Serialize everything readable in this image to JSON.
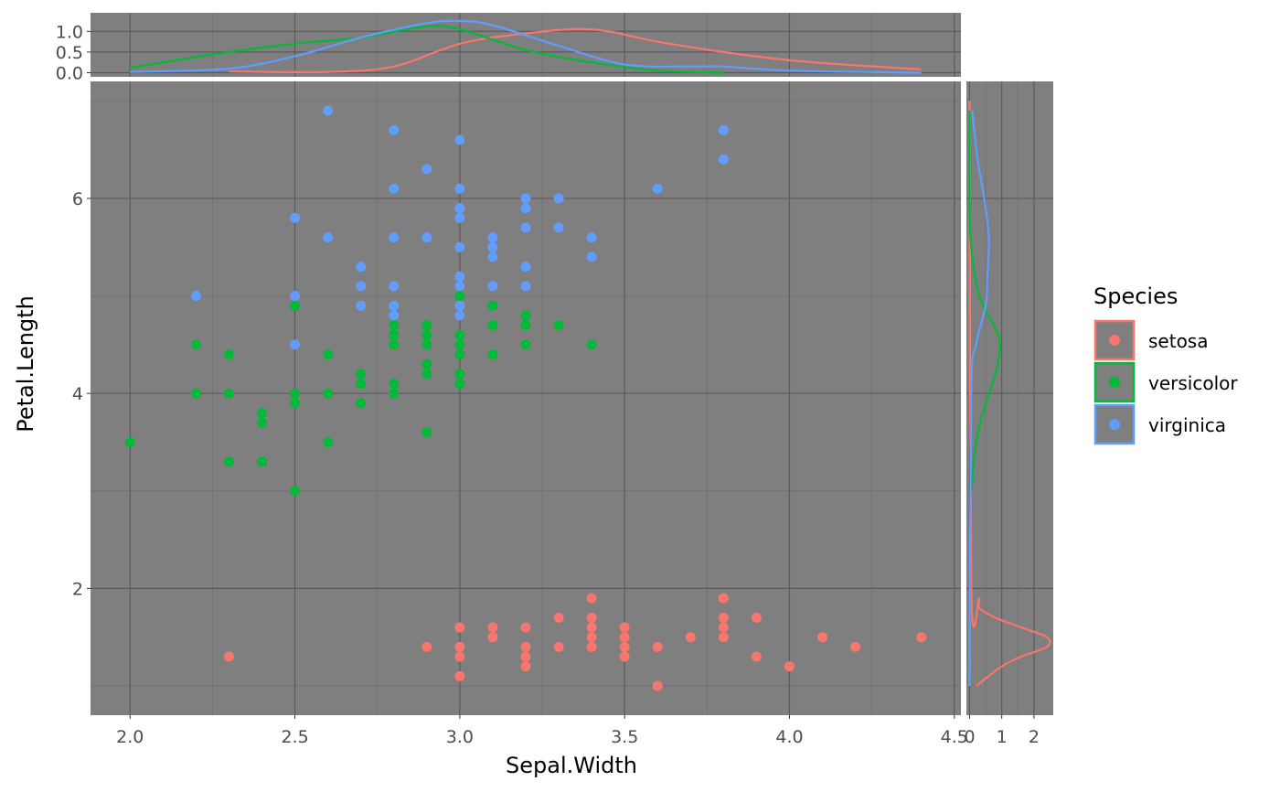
{
  "chart_data": {
    "type": "scatter",
    "xlabel": "Sepal.Width",
    "ylabel": "Petal.Length",
    "xlim": [
      1.88,
      4.52
    ],
    "ylim": [
      0.7,
      7.2
    ],
    "x_ticks": [
      "2.0",
      "2.5",
      "3.0",
      "3.5",
      "4.0",
      "4.5"
    ],
    "y_ticks": [
      "2",
      "4",
      "6"
    ],
    "top_density_ticks": [
      "0.0",
      "0.5",
      "1.0"
    ],
    "right_density_ticks": [
      "0",
      "1",
      "2"
    ],
    "grid": true,
    "legend": {
      "title": "Species",
      "position": "right"
    },
    "series": [
      {
        "name": "setosa",
        "color": "#F8766D",
        "points": [
          [
            2.3,
            1.3
          ],
          [
            2.9,
            1.4
          ],
          [
            3.0,
            1.6
          ],
          [
            3.0,
            1.4
          ],
          [
            3.0,
            1.3
          ],
          [
            3.0,
            1.1
          ],
          [
            3.1,
            1.6
          ],
          [
            3.1,
            1.5
          ],
          [
            3.2,
            1.6
          ],
          [
            3.2,
            1.4
          ],
          [
            3.2,
            1.3
          ],
          [
            3.2,
            1.2
          ],
          [
            3.3,
            1.7
          ],
          [
            3.3,
            1.4
          ],
          [
            3.4,
            1.9
          ],
          [
            3.4,
            1.7
          ],
          [
            3.4,
            1.6
          ],
          [
            3.4,
            1.5
          ],
          [
            3.4,
            1.4
          ],
          [
            3.5,
            1.6
          ],
          [
            3.5,
            1.5
          ],
          [
            3.5,
            1.4
          ],
          [
            3.5,
            1.3
          ],
          [
            3.6,
            1.4
          ],
          [
            3.6,
            1.0
          ],
          [
            3.7,
            1.5
          ],
          [
            3.8,
            1.9
          ],
          [
            3.8,
            1.7
          ],
          [
            3.8,
            1.6
          ],
          [
            3.8,
            1.5
          ],
          [
            3.9,
            1.7
          ],
          [
            3.9,
            1.3
          ],
          [
            4.0,
            1.2
          ],
          [
            4.1,
            1.5
          ],
          [
            4.2,
            1.4
          ],
          [
            4.4,
            1.5
          ]
        ],
        "density_x": [
          [
            2.3,
            0.03
          ],
          [
            2.6,
            0.02
          ],
          [
            2.8,
            0.15
          ],
          [
            3.0,
            0.7
          ],
          [
            3.2,
            0.95
          ],
          [
            3.4,
            1.05
          ],
          [
            3.6,
            0.75
          ],
          [
            3.8,
            0.5
          ],
          [
            4.0,
            0.3
          ],
          [
            4.2,
            0.18
          ],
          [
            4.4,
            0.08
          ]
        ],
        "density_y": [
          [
            1.0,
            0.2
          ],
          [
            1.2,
            1.0
          ],
          [
            1.3,
            1.6
          ],
          [
            1.4,
            2.4
          ],
          [
            1.5,
            2.4
          ],
          [
            1.6,
            1.6
          ],
          [
            1.7,
            0.8
          ],
          [
            1.8,
            0.3
          ],
          [
            1.9,
            0.3
          ],
          [
            2.0,
            0.05
          ],
          [
            7.0,
            0.0
          ]
        ]
      },
      {
        "name": "versicolor",
        "color": "#00BA38",
        "points": [
          [
            2.0,
            3.5
          ],
          [
            2.2,
            4.5
          ],
          [
            2.2,
            4.0
          ],
          [
            2.3,
            4.4
          ],
          [
            2.3,
            4.0
          ],
          [
            2.3,
            3.3
          ],
          [
            2.4,
            3.8
          ],
          [
            2.4,
            3.7
          ],
          [
            2.4,
            3.3
          ],
          [
            2.5,
            4.9
          ],
          [
            2.5,
            4.0
          ],
          [
            2.5,
            3.9
          ],
          [
            2.5,
            3.0
          ],
          [
            2.6,
            4.4
          ],
          [
            2.6,
            4.0
          ],
          [
            2.6,
            3.5
          ],
          [
            2.7,
            4.2
          ],
          [
            2.7,
            4.1
          ],
          [
            2.7,
            3.9
          ],
          [
            2.8,
            4.7
          ],
          [
            2.8,
            4.6
          ],
          [
            2.8,
            4.5
          ],
          [
            2.8,
            4.1
          ],
          [
            2.8,
            4.0
          ],
          [
            2.9,
            4.7
          ],
          [
            2.9,
            4.6
          ],
          [
            2.9,
            4.5
          ],
          [
            2.9,
            4.3
          ],
          [
            2.9,
            4.2
          ],
          [
            2.9,
            3.6
          ],
          [
            3.0,
            5.0
          ],
          [
            3.0,
            4.6
          ],
          [
            3.0,
            4.5
          ],
          [
            3.0,
            4.4
          ],
          [
            3.0,
            4.2
          ],
          [
            3.0,
            4.1
          ],
          [
            3.1,
            4.9
          ],
          [
            3.1,
            4.7
          ],
          [
            3.1,
            4.4
          ],
          [
            3.2,
            4.8
          ],
          [
            3.2,
            4.7
          ],
          [
            3.2,
            4.5
          ],
          [
            3.3,
            4.7
          ],
          [
            3.4,
            4.5
          ]
        ],
        "density_x": [
          [
            2.0,
            0.12
          ],
          [
            2.3,
            0.5
          ],
          [
            2.5,
            0.7
          ],
          [
            2.7,
            0.85
          ],
          [
            2.9,
            1.12
          ],
          [
            3.0,
            1.05
          ],
          [
            3.2,
            0.55
          ],
          [
            3.4,
            0.25
          ],
          [
            3.6,
            0.05
          ],
          [
            3.8,
            0.0
          ]
        ],
        "density_y": [
          [
            3.0,
            0.05
          ],
          [
            3.5,
            0.2
          ],
          [
            3.9,
            0.5
          ],
          [
            4.2,
            0.8
          ],
          [
            4.5,
            0.95
          ],
          [
            4.7,
            0.75
          ],
          [
            5.0,
            0.3
          ],
          [
            5.5,
            0.05
          ],
          [
            6.0,
            0.0
          ],
          [
            6.9,
            0.0
          ]
        ]
      },
      {
        "name": "virginica",
        "color": "#619CFF",
        "points": [
          [
            2.2,
            5.0
          ],
          [
            2.5,
            5.8
          ],
          [
            2.5,
            5.0
          ],
          [
            2.5,
            4.5
          ],
          [
            2.6,
            6.9
          ],
          [
            2.6,
            5.6
          ],
          [
            2.7,
            5.3
          ],
          [
            2.7,
            5.1
          ],
          [
            2.7,
            4.9
          ],
          [
            2.8,
            6.7
          ],
          [
            2.8,
            6.1
          ],
          [
            2.8,
            5.6
          ],
          [
            2.8,
            5.1
          ],
          [
            2.8,
            4.9
          ],
          [
            2.8,
            4.8
          ],
          [
            2.9,
            6.3
          ],
          [
            2.9,
            5.6
          ],
          [
            3.0,
            6.6
          ],
          [
            3.0,
            6.1
          ],
          [
            3.0,
            5.9
          ],
          [
            3.0,
            5.8
          ],
          [
            3.0,
            5.5
          ],
          [
            3.0,
            5.2
          ],
          [
            3.0,
            5.1
          ],
          [
            3.0,
            4.9
          ],
          [
            3.0,
            4.8
          ],
          [
            3.1,
            5.6
          ],
          [
            3.1,
            5.5
          ],
          [
            3.1,
            5.4
          ],
          [
            3.1,
            5.1
          ],
          [
            3.2,
            6.0
          ],
          [
            3.2,
            5.9
          ],
          [
            3.2,
            5.7
          ],
          [
            3.2,
            5.3
          ],
          [
            3.2,
            5.1
          ],
          [
            3.3,
            6.0
          ],
          [
            3.3,
            5.7
          ],
          [
            3.4,
            5.6
          ],
          [
            3.4,
            5.4
          ],
          [
            3.6,
            6.1
          ],
          [
            3.8,
            6.7
          ],
          [
            3.8,
            6.4
          ]
        ],
        "density_x": [
          [
            2.0,
            0.02
          ],
          [
            2.3,
            0.1
          ],
          [
            2.5,
            0.4
          ],
          [
            2.7,
            0.85
          ],
          [
            2.9,
            1.2
          ],
          [
            3.0,
            1.25
          ],
          [
            3.1,
            1.15
          ],
          [
            3.3,
            0.65
          ],
          [
            3.5,
            0.2
          ],
          [
            3.7,
            0.15
          ],
          [
            3.8,
            0.15
          ],
          [
            4.0,
            0.05
          ],
          [
            4.4,
            0.0
          ]
        ],
        "density_y": [
          [
            1.0,
            0.0
          ],
          [
            4.0,
            0.05
          ],
          [
            4.5,
            0.2
          ],
          [
            4.9,
            0.5
          ],
          [
            5.2,
            0.55
          ],
          [
            5.6,
            0.6
          ],
          [
            6.0,
            0.45
          ],
          [
            6.4,
            0.25
          ],
          [
            6.9,
            0.08
          ]
        ]
      }
    ]
  }
}
